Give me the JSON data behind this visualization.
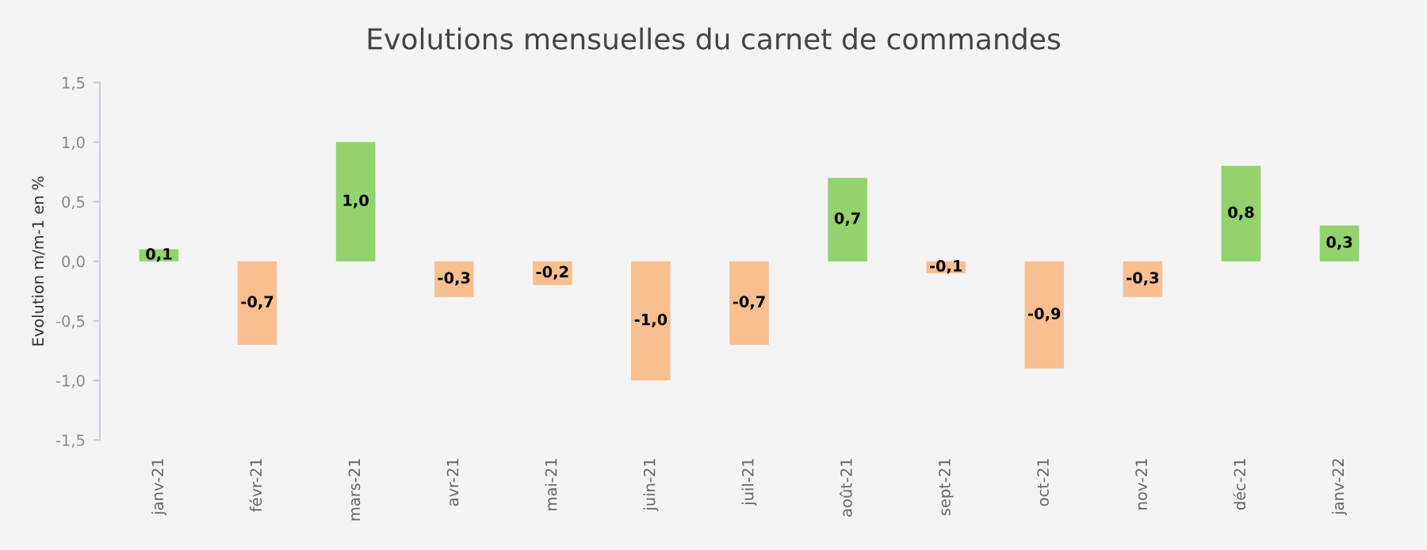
{
  "chart_data": {
    "type": "bar",
    "title": "Evolutions mensuelles du carnet de commandes",
    "ylabel": "Evolution m/m-1 en %",
    "categories": [
      "janv-21",
      "févr-21",
      "mars-21",
      "avr-21",
      "mai-21",
      "juin-21",
      "juil-21",
      "août-21",
      "sept-21",
      "oct-21",
      "nov-21",
      "déc-21",
      "janv-22"
    ],
    "values": [
      0.1,
      -0.7,
      1.0,
      -0.3,
      -0.2,
      -1.0,
      -0.7,
      0.7,
      -0.1,
      -0.9,
      -0.3,
      0.8,
      0.3
    ],
    "value_labels": [
      "0,1",
      "-0,7",
      "1,0",
      "-0,3",
      "-0,2",
      "-1,0",
      "-0,7",
      "0,7",
      "-0,1",
      "-0,9",
      "-0,3",
      "0,8",
      "0,3"
    ],
    "colors": [
      "#92d36e",
      "#f8c08f",
      "#92d36e",
      "#f8c08f",
      "#f8c08f",
      "#f8c08f",
      "#f8c08f",
      "#92d36e",
      "#f8c08f",
      "#f8c08f",
      "#f8c08f",
      "#92d36e",
      "#92d36e"
    ],
    "ylim": [
      -1.5,
      1.5
    ],
    "yticks": [
      {
        "value": -1.5,
        "label": "-1,5"
      },
      {
        "value": -1.0,
        "label": "-1,0"
      },
      {
        "value": -0.5,
        "label": "-0,5"
      },
      {
        "value": 0.0,
        "label": "0,0"
      },
      {
        "value": 0.5,
        "label": "0,5"
      },
      {
        "value": 1.0,
        "label": "1,0"
      },
      {
        "value": 1.5,
        "label": "1,5"
      }
    ],
    "grid": false,
    "legend": false
  }
}
